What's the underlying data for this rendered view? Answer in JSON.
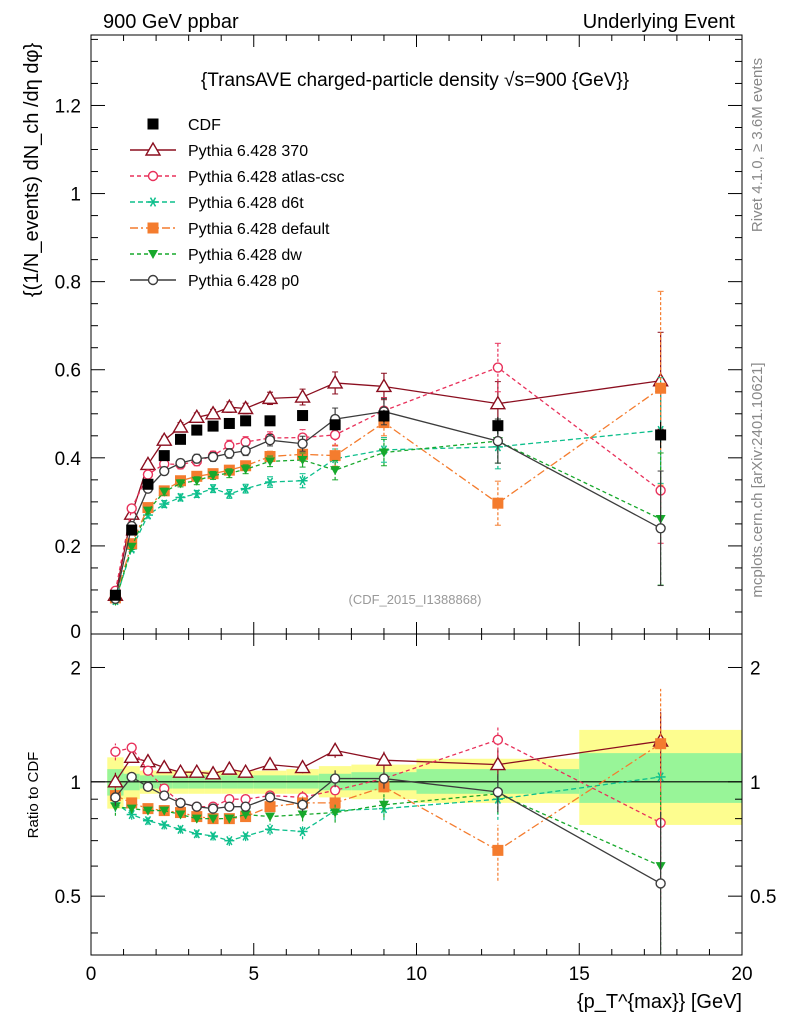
{
  "header": {
    "left": "900 GeV ppbar",
    "right": "Underlying Event"
  },
  "side_labels": {
    "rivet": "Rivet 4.1.0, ≥ 3.6M events",
    "mcplots": "mcplots.cern.ch [arXiv:2401.10621]"
  },
  "chart_data": [
    {
      "type": "line",
      "title": "{TransAVE charged-particle density √s=900 {GeV}}",
      "ylabel": "{(1/N_events) dN_ch /dη dφ}",
      "xlabel": "{p_T^{max}} [GeV]",
      "analysis_tag": "(CDF_2015_I1388868)",
      "xlim": [
        0,
        20
      ],
      "ylim": [
        0,
        1.36
      ],
      "yticks": [
        0.2,
        0.4,
        0.6,
        0.8,
        1.0,
        1.2
      ],
      "ytick_labels": [
        "0.2",
        "0.4",
        "0.6",
        "0.8",
        "1",
        "1.2"
      ],
      "bottom_tick_label": "0",
      "x": [
        0.75,
        1.25,
        1.75,
        2.25,
        2.75,
        3.25,
        3.75,
        4.25,
        4.75,
        5.5,
        6.5,
        7.5,
        9.0,
        12.5,
        17.5
      ],
      "data": {
        "name": "CDF",
        "values": [
          0.088,
          0.236,
          0.34,
          0.405,
          0.442,
          0.463,
          0.472,
          0.478,
          0.484,
          0.484,
          0.496,
          0.475,
          0.495,
          0.473,
          0.452
        ],
        "errors": [
          0.003,
          0.004,
          0.005,
          0.005,
          0.006,
          0.006,
          0.006,
          0.006,
          0.006,
          0.007,
          0.008,
          0.012,
          0.014,
          0.02,
          0.03
        ]
      },
      "series": [
        {
          "name": "Pythia 6.428 370",
          "color": "#8b0e1f",
          "dash": "solid",
          "marker": "triangle-open",
          "values": [
            0.088,
            0.272,
            0.385,
            0.44,
            0.47,
            0.492,
            0.5,
            0.515,
            0.512,
            0.535,
            0.538,
            0.57,
            0.562,
            0.523,
            0.575
          ],
          "errors": [
            0.005,
            0.008,
            0.008,
            0.009,
            0.01,
            0.01,
            0.01,
            0.012,
            0.012,
            0.014,
            0.018,
            0.025,
            0.03,
            0.05,
            0.11
          ]
        },
        {
          "name": "Pythia 6.428 atlas-csc",
          "color": "#e8305a",
          "dash": "4,3",
          "marker": "circle-open",
          "values": [
            0.098,
            0.285,
            0.362,
            0.386,
            0.385,
            0.392,
            0.405,
            0.428,
            0.436,
            0.445,
            0.446,
            0.452,
            0.507,
            0.605,
            0.326
          ],
          "errors": [
            0.005,
            0.008,
            0.008,
            0.009,
            0.01,
            0.01,
            0.01,
            0.012,
            0.012,
            0.014,
            0.018,
            0.025,
            0.03,
            0.055,
            0.12
          ]
        },
        {
          "name": "Pythia 6.428 d6t",
          "color": "#0dbf8c",
          "dash": "5,3",
          "marker": "asterisk",
          "values": [
            0.076,
            0.193,
            0.27,
            0.295,
            0.31,
            0.318,
            0.33,
            0.318,
            0.33,
            0.345,
            0.348,
            0.398,
            0.418,
            0.425,
            0.462
          ],
          "errors": [
            0.004,
            0.006,
            0.007,
            0.008,
            0.008,
            0.008,
            0.009,
            0.01,
            0.01,
            0.012,
            0.016,
            0.022,
            0.028,
            0.05,
            0.12
          ]
        },
        {
          "name": "Pythia 6.428 default",
          "color": "#f47c2e",
          "dash": "8,3,2,3",
          "marker": "square",
          "values": [
            0.082,
            0.205,
            0.287,
            0.325,
            0.348,
            0.358,
            0.364,
            0.372,
            0.382,
            0.403,
            0.408,
            0.405,
            0.48,
            0.297,
            0.558
          ],
          "errors": [
            0.004,
            0.006,
            0.007,
            0.008,
            0.008,
            0.009,
            0.009,
            0.01,
            0.01,
            0.012,
            0.016,
            0.024,
            0.03,
            0.05,
            0.22
          ]
        },
        {
          "name": "Pythia 6.428 dw",
          "color": "#17a82b",
          "dash": "4,3",
          "marker": "triangle-down",
          "values": [
            0.075,
            0.198,
            0.28,
            0.323,
            0.342,
            0.348,
            0.36,
            0.365,
            0.374,
            0.392,
            0.395,
            0.372,
            0.412,
            0.438,
            0.261
          ],
          "errors": [
            0.004,
            0.006,
            0.007,
            0.008,
            0.008,
            0.009,
            0.009,
            0.01,
            0.01,
            0.012,
            0.016,
            0.022,
            0.03,
            0.05,
            0.15
          ]
        },
        {
          "name": "Pythia 6.428 p0",
          "color": "#3c3c3c",
          "dash": "solid",
          "marker": "circle-open",
          "values": [
            0.08,
            0.245,
            0.33,
            0.37,
            0.388,
            0.398,
            0.402,
            0.41,
            0.416,
            0.44,
            0.432,
            0.488,
            0.505,
            0.438,
            0.24
          ],
          "errors": [
            0.004,
            0.007,
            0.008,
            0.009,
            0.009,
            0.01,
            0.01,
            0.011,
            0.011,
            0.013,
            0.017,
            0.025,
            0.03,
            0.05,
            0.13
          ]
        }
      ]
    },
    {
      "type": "line",
      "title": "",
      "ylabel": "Ratio to CDF",
      "xlabel": "{p_T^{max}} [GeV]",
      "xlim": [
        0,
        20
      ],
      "ylim": [
        0.35,
        2.45
      ],
      "yscale": "log",
      "yticks": [
        0.5,
        1,
        2
      ],
      "ytick_labels": [
        "0.5",
        "1",
        "2"
      ],
      "xticks": [
        0,
        5,
        10,
        15,
        20
      ],
      "xtick_labels": [
        "0",
        "5",
        "10",
        "15",
        "20"
      ],
      "reference": 1,
      "bands": {
        "bin_edges": [
          0.5,
          1,
          1.5,
          2,
          2.5,
          3,
          3.5,
          4,
          4.5,
          5,
          6,
          7,
          8,
          10,
          15,
          20
        ],
        "inner": [
          [
            0.92,
            1.08
          ],
          [
            0.95,
            1.05
          ],
          [
            0.96,
            1.04
          ],
          [
            0.96,
            1.04
          ],
          [
            0.96,
            1.04
          ],
          [
            0.96,
            1.04
          ],
          [
            0.96,
            1.04
          ],
          [
            0.96,
            1.04
          ],
          [
            0.96,
            1.04
          ],
          [
            0.96,
            1.04
          ],
          [
            0.96,
            1.04
          ],
          [
            0.95,
            1.05
          ],
          [
            0.95,
            1.06
          ],
          [
            0.93,
            1.08
          ],
          [
            0.88,
            1.19
          ]
        ],
        "outer": [
          [
            0.85,
            1.16
          ],
          [
            0.9,
            1.1
          ],
          [
            0.93,
            1.07
          ],
          [
            0.93,
            1.07
          ],
          [
            0.93,
            1.07
          ],
          [
            0.93,
            1.07
          ],
          [
            0.93,
            1.07
          ],
          [
            0.93,
            1.07
          ],
          [
            0.93,
            1.07
          ],
          [
            0.93,
            1.07
          ],
          [
            0.93,
            1.08
          ],
          [
            0.91,
            1.1
          ],
          [
            0.9,
            1.11
          ],
          [
            0.88,
            1.15
          ],
          [
            0.77,
            1.37
          ]
        ]
      },
      "data_errors": [
        0.02,
        0.02,
        0.02,
        0.02,
        0.02,
        0.02,
        0.02,
        0.02,
        0.02,
        0.02,
        0.02,
        0.03,
        0.03,
        0.05,
        0.07
      ],
      "series": [
        {
          "name": "Pythia 6.428 370",
          "values": [
            1.0,
            1.16,
            1.13,
            1.09,
            1.06,
            1.06,
            1.05,
            1.08,
            1.06,
            1.11,
            1.09,
            1.21,
            1.14,
            1.11,
            1.28
          ]
        },
        {
          "name": "Pythia 6.428 atlas-csc",
          "values": [
            1.2,
            1.23,
            1.07,
            0.96,
            0.88,
            0.86,
            0.86,
            0.9,
            0.9,
            0.92,
            0.91,
            0.95,
            1.02,
            1.29,
            0.78
          ]
        },
        {
          "name": "Pythia 6.428 d6t",
          "values": [
            0.88,
            0.82,
            0.79,
            0.77,
            0.75,
            0.73,
            0.72,
            0.7,
            0.72,
            0.75,
            0.74,
            0.84,
            0.85,
            0.9,
            1.03
          ]
        },
        {
          "name": "Pythia 6.428 default",
          "values": [
            0.92,
            0.88,
            0.85,
            0.84,
            0.83,
            0.81,
            0.8,
            0.8,
            0.81,
            0.86,
            0.88,
            0.88,
            0.97,
            0.66,
            1.26
          ]
        },
        {
          "name": "Pythia 6.428 dw",
          "values": [
            0.86,
            0.85,
            0.84,
            0.84,
            0.82,
            0.8,
            0.8,
            0.8,
            0.82,
            0.81,
            0.82,
            0.83,
            0.87,
            0.93,
            0.6
          ]
        },
        {
          "name": "Pythia 6.428 p0",
          "values": [
            0.91,
            1.03,
            0.97,
            0.92,
            0.88,
            0.86,
            0.85,
            0.86,
            0.86,
            0.91,
            0.87,
            1.02,
            1.02,
            0.94,
            0.54
          ]
        }
      ]
    }
  ]
}
